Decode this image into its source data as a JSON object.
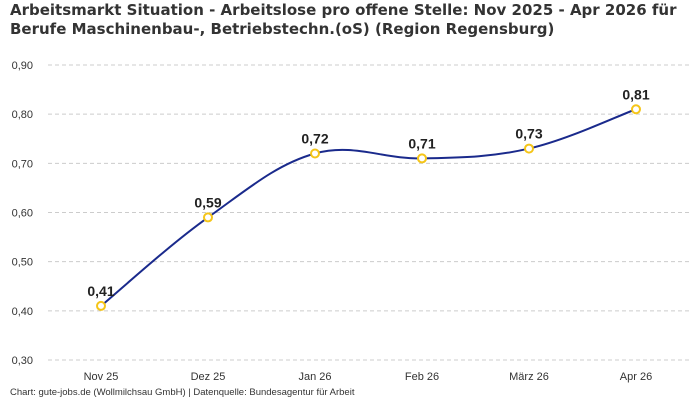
{
  "title_lines": [
    "Arbeitsmarkt Situation - Arbeitslose pro offene Stelle: Nov 2025 - Apr 2026 für",
    "Berufe Maschinenbau-, Betriebstechn.(oS) (Region Regensburg)"
  ],
  "footer": "Chart: gute-jobs.de (Wollmilchsau GmbH) | Datenquelle: Bundesagentur für Arbeit",
  "chart_data": {
    "type": "line",
    "title": "Arbeitsmarkt Situation - Arbeitslose pro offene Stelle: Nov 2025 - Apr 2026 für Berufe Maschinenbau-, Betriebstechn.(oS) (Region Regensburg)",
    "xlabel": "",
    "ylabel": "",
    "categories": [
      "Nov 25",
      "Dez 25",
      "Jan 26",
      "Feb 26",
      "März 26",
      "Apr 26"
    ],
    "values": [
      0.41,
      0.59,
      0.72,
      0.71,
      0.73,
      0.81
    ],
    "data_labels": [
      "0,41",
      "0,59",
      "0,72",
      "0,71",
      "0,73",
      "0,81"
    ],
    "ylim": [
      0.3,
      0.9
    ],
    "yticks": [
      0.3,
      0.4,
      0.5,
      0.6,
      0.7,
      0.8,
      0.9
    ],
    "ytick_labels": [
      "0,30",
      "0,40",
      "0,50",
      "0,60",
      "0,70",
      "0,80",
      "0,90"
    ],
    "grid": "horizontal dashed",
    "legend": "none",
    "line_color": "#1a2a8c",
    "marker_color": "#f5c518",
    "marker_fill": "#ffffff",
    "grid_color": "#cccccc"
  }
}
